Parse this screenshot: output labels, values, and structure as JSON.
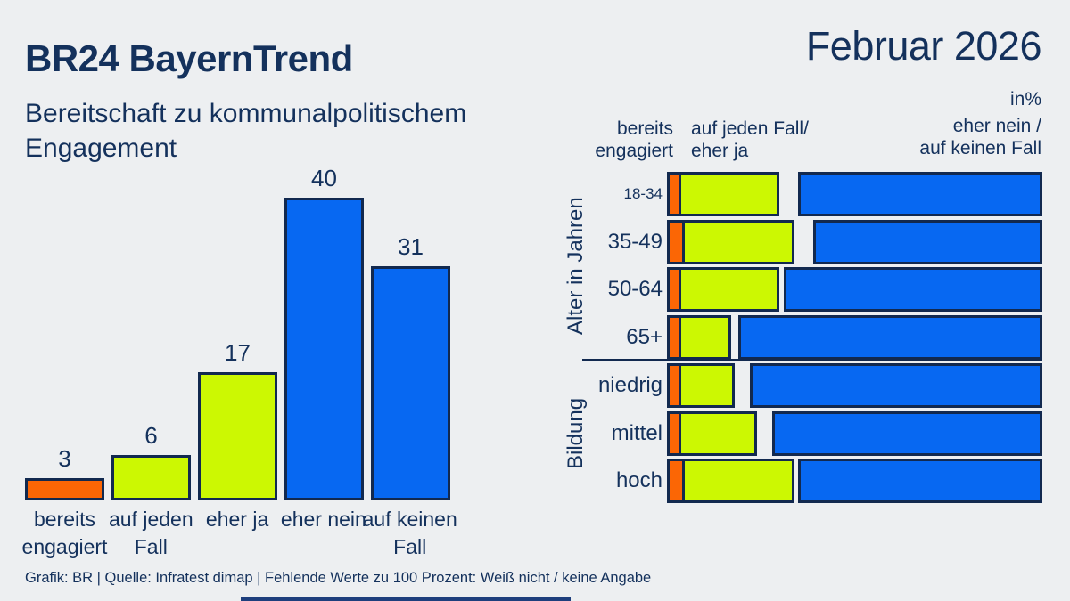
{
  "page": {
    "title": "BR24 BayernTrend",
    "subtitle": "Bereitschaft zu kommunalpolitischem\nEngagement",
    "date_label": "Februar 2026",
    "unit_label": "in%",
    "footer": "Grafik: BR | Quelle: Infratest dimap | Fehlende Werte zu 100 Prozent: Weiß nicht / keine Angabe"
  },
  "colors": {
    "background": "#edeff1",
    "text_navy": "#14315c",
    "border_navy": "#12294f",
    "engaged_orange": "#fb6605",
    "yes_green": "#ccf802",
    "no_blue": "#0768f2",
    "bottom_bar_blue": "#1e3f7d"
  },
  "chart_data": [
    {
      "type": "bar",
      "title": "Bereitschaft zu kommunalpolitischem Engagement",
      "unit": "in %",
      "categories": [
        "bereits engagiert",
        "auf jeden Fall",
        "eher ja",
        "eher nein",
        "auf keinen Fall"
      ],
      "category_label_lines": [
        "bereits\nengagiert",
        "auf jeden\nFall",
        "eher ja",
        "eher nein",
        "auf keinen\nFall"
      ],
      "values": [
        3,
        6,
        17,
        40,
        31
      ],
      "bar_colors": [
        "engaged",
        "yes",
        "yes",
        "no",
        "no"
      ],
      "ylim": [
        0,
        44
      ],
      "grid": false,
      "value_labels": true
    },
    {
      "type": "bar",
      "orientation": "horizontal-stacked",
      "unit": "in %",
      "xmax": 100,
      "note": "blue segment right-aligned at 100%; white gap = Weiß nicht / keine Angabe",
      "col_headers": {
        "engaged": "bereits\nengagiert",
        "yes": "auf jeden Fall/\neher ja",
        "no": "eher nein /\nauf keinen Fall"
      },
      "groups": [
        {
          "label": "Alter in Jahren",
          "rows": [
            {
              "label": "18-34",
              "engaged": 3,
              "yes": 27,
              "no": 65
            },
            {
              "label": "35-49",
              "engaged": 4,
              "yes": 30,
              "no": 61
            },
            {
              "label": "50-64",
              "engaged": 3,
              "yes": 27,
              "no": 69
            },
            {
              "label": "65+",
              "engaged": 3,
              "yes": 14,
              "no": 81
            }
          ]
        },
        {
          "label": "Bildung",
          "rows": [
            {
              "label": "niedrig",
              "engaged": 3,
              "yes": 15,
              "no": 78
            },
            {
              "label": "mittel",
              "engaged": 3,
              "yes": 21,
              "no": 72
            },
            {
              "label": "hoch",
              "engaged": 4,
              "yes": 30,
              "no": 65
            }
          ]
        }
      ]
    }
  ]
}
